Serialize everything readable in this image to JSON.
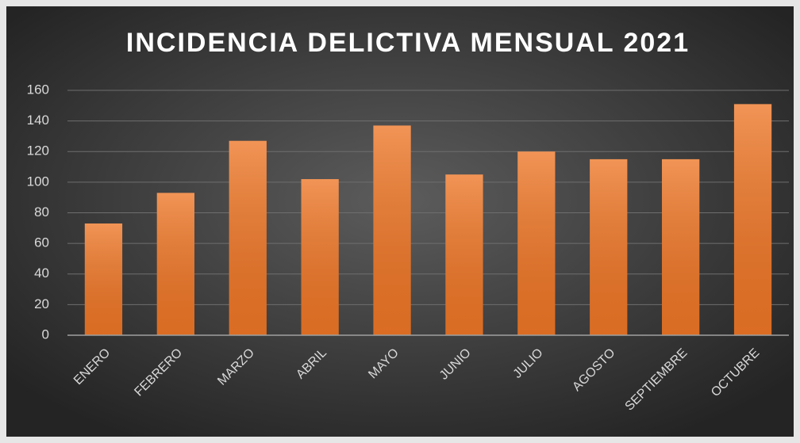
{
  "chart_data": {
    "type": "bar",
    "title": "INCIDENCIA DELICTIVA MENSUAL 2021",
    "categories": [
      "ENERO",
      "FEBRERO",
      "MARZO",
      "ABRIL",
      "MAYO",
      "JUNIO",
      "JULIO",
      "AGOSTO",
      "SEPTIEMBRE",
      "OCTUBRE"
    ],
    "values": [
      73,
      93,
      127,
      102,
      137,
      105,
      120,
      115,
      115,
      151
    ],
    "color": "#ee7626",
    "ylim": [
      0,
      160
    ],
    "yticks": [
      0,
      20,
      40,
      60,
      80,
      100,
      120,
      140,
      160
    ],
    "grid": true
  }
}
